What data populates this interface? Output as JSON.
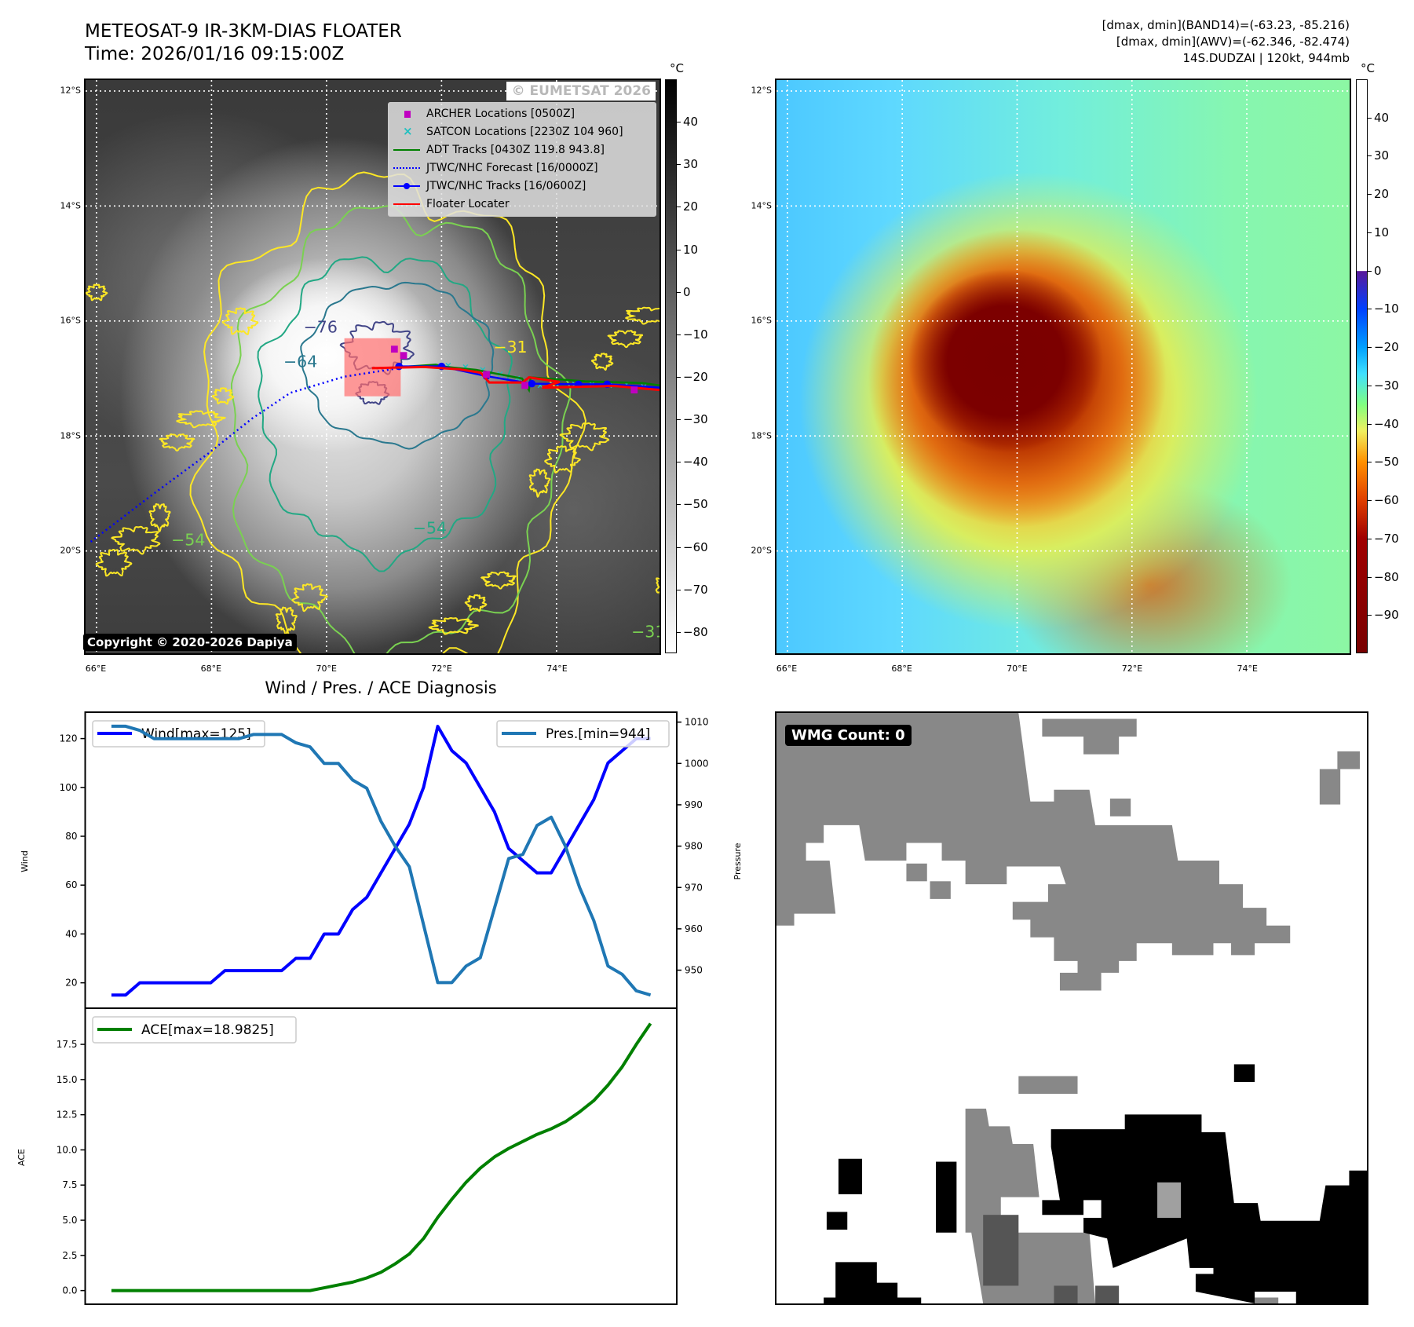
{
  "header": {
    "title": "METEOSAT-9 IR-3KM-DIAS FLOATER",
    "time": "Time: 2026/01/16 09:15:00Z",
    "info": [
      "[dmax, dmin](BAND14)=(-63.23, -85.216)",
      "[dmax, dmin](AWV)=(-62.346, -82.474)",
      "14S.DUDZAI | 120kt, 944mb"
    ]
  },
  "grid": {
    "lat_labels": [
      "12°S",
      "14°S",
      "16°S",
      "18°S",
      "20°S"
    ],
    "lat_values": [
      12,
      14,
      16,
      18,
      20
    ],
    "lon_labels": [
      "66°E",
      "68°E",
      "70°E",
      "72°E",
      "74°E"
    ],
    "lon_values": [
      66,
      68,
      70,
      72,
      74
    ],
    "extent": {
      "lon": [
        65.81,
        75.79
      ],
      "lat_south": [
        11.81,
        21.78
      ]
    }
  },
  "ir_map": {
    "watermark": "© EUMETSAT 2026",
    "copyright": "Copyright © 2020-2026 Dapiya",
    "legend": [
      {
        "label": "ARCHER Locations [0500Z]",
        "color": "#c000c0"
      },
      {
        "label": "SATCON Locations [2230Z 104 960]",
        "color": "#20c0c0"
      },
      {
        "label": "ADT Tracks [0430Z 119.8 943.8]",
        "color": "#008000"
      },
      {
        "label": "JTWC/NHC Forecast [16/0000Z]",
        "color": "#0000ff"
      },
      {
        "label": "JTWC/NHC Tracks [16/0600Z]",
        "color": "#0000ff"
      },
      {
        "label": "Floater Locater",
        "color": "#ff0000"
      }
    ],
    "contour_labels": [
      "−76",
      "−64",
      "−54",
      "−31",
      "−54",
      "−31"
    ],
    "colorbar": {
      "unit": "°C",
      "range": [
        50,
        -85
      ],
      "ticks": [
        "40",
        "30",
        "20",
        "10",
        "0",
        "−10",
        "−20",
        "−30",
        "−40",
        "−50",
        "−60",
        "−70",
        "−80"
      ],
      "tick_values": [
        40,
        30,
        20,
        10,
        0,
        -10,
        -20,
        -30,
        -40,
        -50,
        -60,
        -70,
        -80
      ]
    },
    "tracks": {
      "forecast": [
        [
          65.9,
          19.84
        ],
        [
          67.0,
          19.0
        ],
        [
          67.95,
          18.3
        ],
        [
          68.7,
          17.7
        ],
        [
          69.37,
          17.25
        ],
        [
          70.3,
          16.97
        ],
        [
          71.26,
          16.82
        ]
      ],
      "jtwc": [
        [
          71.26,
          16.79
        ],
        [
          72.0,
          16.79
        ],
        [
          72.78,
          16.96
        ],
        [
          73.57,
          17.09
        ],
        [
          74.38,
          17.1
        ],
        [
          74.88,
          17.1
        ],
        [
          75.8,
          17.16
        ]
      ],
      "floater": [
        [
          70.79,
          16.82
        ],
        [
          71.7,
          16.8
        ],
        [
          72.3,
          16.84
        ],
        [
          72.68,
          16.9
        ],
        [
          72.83,
          17.07
        ],
        [
          73.41,
          17.07
        ],
        [
          73.52,
          16.98
        ],
        [
          74.05,
          17.06
        ],
        [
          73.75,
          17.16
        ],
        [
          75.0,
          17.13
        ],
        [
          75.8,
          17.2
        ]
      ],
      "adt": [
        [
          71.3,
          16.8
        ],
        [
          71.9,
          16.76
        ],
        [
          72.1,
          16.8
        ],
        [
          72.6,
          16.85
        ],
        [
          73.4,
          17.0
        ],
        [
          73.52,
          17.2
        ],
        [
          73.55,
          16.98
        ],
        [
          74.5,
          17.05
        ],
        [
          75.5,
          17.08
        ],
        [
          75.8,
          17.12
        ]
      ],
      "archer": [
        [
          71.18,
          16.49
        ],
        [
          71.34,
          16.6
        ],
        [
          72.78,
          16.93
        ],
        [
          73.45,
          17.12
        ],
        [
          75.35,
          17.2
        ]
      ],
      "satcon": [
        [
          72.1,
          16.77
        ],
        [
          72.4,
          16.8
        ],
        [
          72.7,
          16.85
        ],
        [
          73.0,
          16.92
        ],
        [
          73.3,
          17.0
        ],
        [
          73.7,
          17.12
        ],
        [
          74.0,
          17.12
        ],
        [
          74.3,
          17.1
        ],
        [
          74.6,
          17.1
        ],
        [
          74.9,
          17.12
        ],
        [
          75.2,
          17.1
        ],
        [
          75.5,
          17.14
        ]
      ],
      "floater_box": {
        "lon": [
          70.31,
          71.29
        ],
        "lat": [
          16.3,
          17.31
        ]
      }
    }
  },
  "awv_map": {
    "colorbar": {
      "unit": "°C",
      "range": [
        50,
        -100
      ],
      "ticks": [
        "40",
        "30",
        "20",
        "10",
        "0",
        "−10",
        "−20",
        "−30",
        "−40",
        "−50",
        "−60",
        "−70",
        "−80",
        "−90"
      ],
      "tick_values": [
        40,
        30,
        20,
        10,
        0,
        -10,
        -20,
        -30,
        -40,
        -50,
        -60,
        -70,
        -80,
        -90
      ]
    }
  },
  "diagnosis": {
    "title": "Wind / Pres. / ACE Diagnosis",
    "wind_axis_label": "Wind",
    "pressure_axis_label": "Pressure",
    "ace_axis_label": "ACE",
    "wind_legend": "Wind[max=125]",
    "pressure_legend": "Pres.[min=944]",
    "ace_legend": "ACE[max=18.9825]"
  },
  "chart_data": [
    {
      "type": "line",
      "title": "Wind / Pres. / ACE Diagnosis",
      "x": [
        0,
        1,
        2,
        3,
        4,
        5,
        6,
        7,
        8,
        9,
        10,
        11,
        12,
        13,
        14,
        15,
        16,
        17,
        18,
        19,
        20,
        21,
        22,
        23,
        24,
        25,
        26,
        27,
        28,
        29,
        30,
        31,
        32,
        33,
        34,
        35,
        36,
        37,
        38
      ],
      "xlim": [
        -1.85,
        39.85
      ],
      "series": [
        {
          "name": "Wind[max=125]",
          "axis": "left",
          "color": "#0000ff",
          "values": [
            15,
            15,
            20,
            20,
            20,
            20,
            20,
            20,
            25,
            25,
            25,
            25,
            25,
            30,
            30,
            40,
            40,
            50,
            55,
            65,
            75,
            85,
            100,
            125,
            115,
            110,
            100,
            90,
            75,
            70,
            65,
            65,
            75,
            85,
            95,
            110,
            115,
            120,
            120
          ]
        },
        {
          "name": "Pres.[min=944]",
          "axis": "right",
          "color": "#1f77b4",
          "values": [
            1009,
            1009,
            1008,
            1006,
            1006,
            1006,
            1006,
            1006,
            1006,
            1006,
            1007,
            1007,
            1007,
            1005,
            1004,
            1000,
            1000,
            996,
            994,
            986,
            980,
            975,
            961,
            947,
            947,
            951,
            953,
            965,
            977,
            978,
            985,
            987,
            980,
            970,
            962,
            951,
            949,
            945,
            944
          ]
        }
      ],
      "ylabel": "Wind",
      "ylim": [
        9.6,
        130.8
      ],
      "yticks": [
        "20",
        "40",
        "60",
        "80",
        "100",
        "120"
      ],
      "ytick_values": [
        20,
        40,
        60,
        80,
        100,
        120
      ],
      "y2label": "Pressure",
      "y2lim": [
        940.8,
        1012.4
      ],
      "y2ticks": [
        "950",
        "960",
        "970",
        "980",
        "990",
        "1000",
        "1010"
      ],
      "y2tick_values": [
        950,
        960,
        970,
        980,
        990,
        1000,
        1010
      ],
      "legend_placement": [
        "upper-left",
        "upper-right"
      ]
    },
    {
      "type": "line",
      "x": [
        0,
        1,
        2,
        3,
        4,
        5,
        6,
        7,
        8,
        9,
        10,
        11,
        12,
        13,
        14,
        15,
        16,
        17,
        18,
        19,
        20,
        21,
        22,
        23,
        24,
        25,
        26,
        27,
        28,
        29,
        30,
        31,
        32,
        33,
        34,
        35,
        36,
        37,
        38
      ],
      "xlim": [
        -1.85,
        39.85
      ],
      "series": [
        {
          "name": "ACE[max=18.9825]",
          "color": "#008000",
          "values": [
            0,
            0,
            0,
            0,
            0,
            0,
            0,
            0,
            0,
            0,
            0,
            0,
            0,
            0,
            0,
            0.2,
            0.4,
            0.6,
            0.9,
            1.3,
            1.9,
            2.6,
            3.7,
            5.2,
            6.5,
            7.7,
            8.7,
            9.5,
            10.1,
            10.6,
            11.1,
            11.5,
            12.0,
            12.7,
            13.5,
            14.6,
            15.9,
            17.5,
            18.98
          ]
        }
      ],
      "ylabel": "ACE",
      "ylim": [
        -0.97,
        20.07
      ],
      "yticks": [
        "0.0",
        "2.5",
        "5.0",
        "7.5",
        "10.0",
        "12.5",
        "15.0",
        "17.5"
      ],
      "ytick_values": [
        0,
        2.5,
        5,
        7.5,
        10,
        12.5,
        15,
        17.5
      ],
      "legend_placement": "upper-left"
    }
  ],
  "wmg": {
    "label": "WMG Count: 0"
  }
}
